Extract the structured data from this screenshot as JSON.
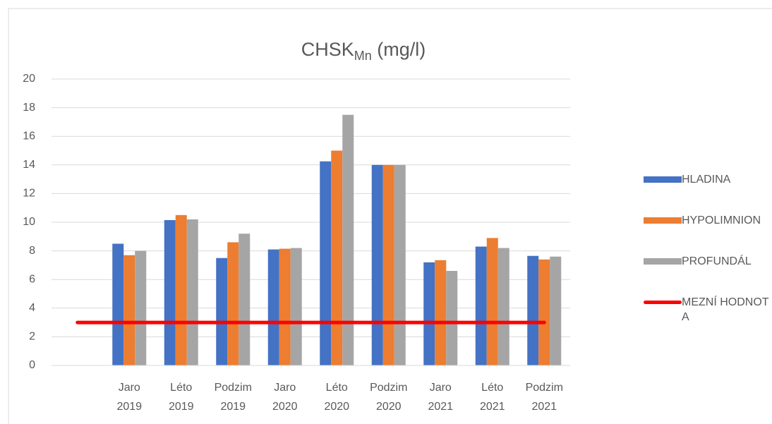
{
  "chart_data": {
    "type": "bar",
    "title": "CHSK",
    "title_subscript": "Mn",
    "title_suffix": " (mg/l)",
    "categories": [
      null,
      "Jaro 2019",
      "Léto 2019",
      "Podzim 2019",
      "Jaro 2020",
      "Léto 2020",
      "Podzim 2020",
      "Jaro 2021",
      "Léto 2021",
      "Podzim 2021"
    ],
    "series": [
      {
        "name": "HLADINA",
        "color": "#4472c4",
        "values": [
          null,
          8.5,
          10.15,
          7.5,
          8.1,
          14.25,
          14,
          7.2,
          8.3,
          7.65
        ]
      },
      {
        "name": "HYPOLIMNION",
        "color": "#ed7d31",
        "values": [
          null,
          7.7,
          10.5,
          8.6,
          8.15,
          15,
          14,
          7.35,
          8.9,
          7.4
        ]
      },
      {
        "name": "PROFUNDÁL",
        "color": "#a5a5a5",
        "values": [
          null,
          8,
          10.2,
          9.2,
          8.2,
          17.5,
          14,
          6.6,
          8.2,
          7.6
        ]
      },
      {
        "name": "MEZNÍ HODNOTA",
        "color": "#ff0000",
        "type": "line",
        "values": [
          3,
          3,
          3,
          3,
          3,
          3,
          3,
          3,
          3,
          3
        ]
      }
    ],
    "ylim": [
      0,
      20
    ],
    "yticks": [
      0,
      2,
      4,
      6,
      8,
      10,
      12,
      14,
      16,
      18,
      20
    ],
    "grid": true,
    "legend": "right"
  }
}
